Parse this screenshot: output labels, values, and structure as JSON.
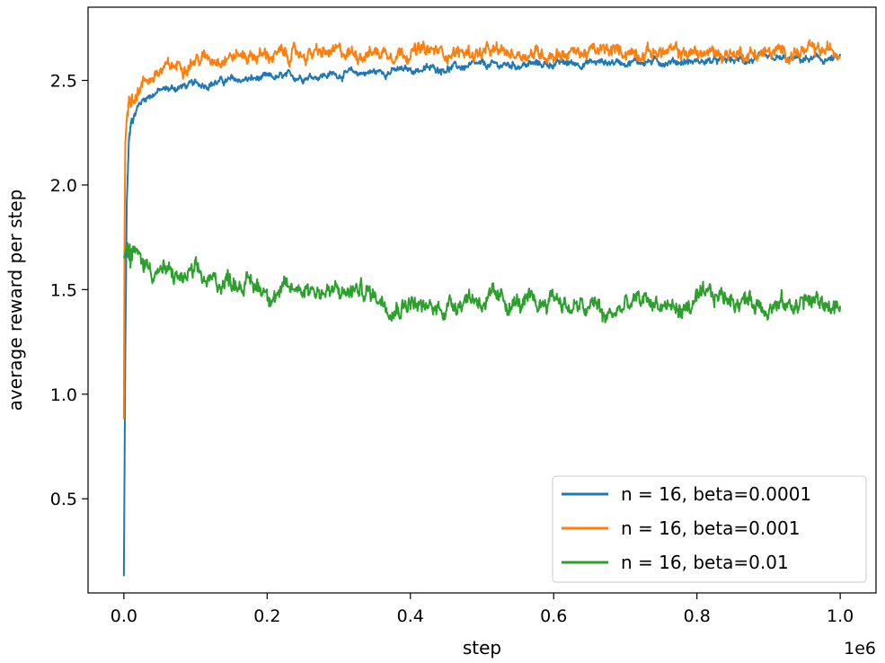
{
  "chart_data": {
    "type": "line",
    "title": "",
    "xlabel": "step",
    "ylabel": "average reward per step",
    "x_offset_label": "1e6",
    "xlim": [
      -0.05,
      1.05
    ],
    "ylim": [
      0.05,
      2.85
    ],
    "x_ticks": [
      0.0,
      0.2,
      0.4,
      0.6,
      0.8,
      1.0
    ],
    "x_tick_labels": [
      "0.0",
      "0.2",
      "0.4",
      "0.6",
      "0.8",
      "1.0"
    ],
    "y_ticks": [
      0.5,
      1.0,
      1.5,
      2.0,
      2.5
    ],
    "y_tick_labels": [
      "0.5",
      "1.0",
      "1.5",
      "2.0",
      "2.5"
    ],
    "grid": false,
    "legend_location": "lower right",
    "series": [
      {
        "name": "n = 16, beta=0.0001",
        "color": "#1f77b4",
        "noise": 0.012,
        "x": [
          0.0,
          0.002,
          0.004,
          0.007,
          0.01,
          0.02,
          0.03,
          0.05,
          0.08,
          0.1,
          0.15,
          0.2,
          0.3,
          0.4,
          0.5,
          0.6,
          0.7,
          0.8,
          0.9,
          1.0
        ],
        "y": [
          0.13,
          1.2,
          1.9,
          2.2,
          2.3,
          2.38,
          2.42,
          2.45,
          2.47,
          2.48,
          2.5,
          2.51,
          2.53,
          2.55,
          2.57,
          2.58,
          2.59,
          2.59,
          2.6,
          2.6
        ]
      },
      {
        "name": "n = 16, beta=0.001",
        "color": "#ff7f0e",
        "noise": 0.022,
        "x": [
          0.0,
          0.001,
          0.002,
          0.004,
          0.007,
          0.01,
          0.02,
          0.03,
          0.05,
          0.08,
          0.1,
          0.15,
          0.2,
          0.3,
          0.4,
          0.5,
          0.6,
          0.7,
          0.8,
          0.9,
          1.0
        ],
        "y": [
          0.88,
          1.8,
          2.2,
          2.32,
          2.38,
          2.41,
          2.46,
          2.5,
          2.54,
          2.58,
          2.6,
          2.62,
          2.62,
          2.63,
          2.64,
          2.63,
          2.63,
          2.64,
          2.63,
          2.63,
          2.64
        ]
      },
      {
        "name": "n = 16, beta=0.01",
        "color": "#2ca02c",
        "noise": 0.03,
        "x": [
          0.0,
          0.005,
          0.02,
          0.04,
          0.06,
          0.08,
          0.1,
          0.12,
          0.15,
          0.18,
          0.2,
          0.22,
          0.25,
          0.28,
          0.3,
          0.33,
          0.36,
          0.38,
          0.4,
          0.42,
          0.45,
          0.48,
          0.5,
          0.53,
          0.55,
          0.58,
          0.6,
          0.62,
          0.65,
          0.66,
          0.67,
          0.7,
          0.73,
          0.75,
          0.78,
          0.8,
          0.83,
          0.85,
          0.88,
          0.9,
          0.93,
          0.95,
          0.97,
          1.0
        ],
        "y": [
          1.65,
          1.72,
          1.65,
          1.6,
          1.58,
          1.55,
          1.57,
          1.53,
          1.55,
          1.52,
          1.5,
          1.48,
          1.52,
          1.49,
          1.48,
          1.5,
          1.46,
          1.42,
          1.45,
          1.4,
          1.42,
          1.47,
          1.45,
          1.44,
          1.43,
          1.42,
          1.48,
          1.42,
          1.4,
          1.44,
          1.36,
          1.42,
          1.45,
          1.43,
          1.4,
          1.44,
          1.47,
          1.46,
          1.44,
          1.43,
          1.42,
          1.45,
          1.44,
          1.41
        ]
      }
    ]
  }
}
